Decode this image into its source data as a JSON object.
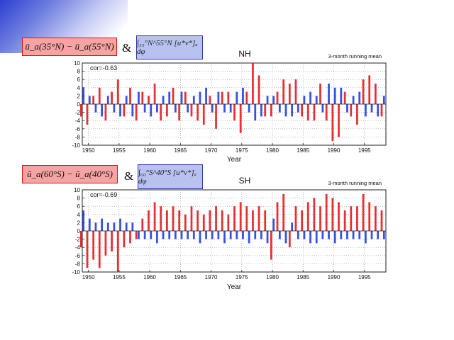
{
  "header": {
    "nh_eq_left": "ū_a(35°N) − ū_a(55°N)",
    "nh_eq_right": "∫₃₅°N^55°N [u*v*]ₐ dφ",
    "sh_eq_left": "ū_a(60°S) − ū_a(40°S)",
    "sh_eq_right": "∫₆₀°S^40°S [u*v*]ₐ dφ",
    "amp": "&"
  },
  "chart_data": [
    {
      "type": "area",
      "panel": "NH",
      "title": "NH",
      "subtitle": "3-month running mean",
      "annotation": "cor=-0.63",
      "xlabel": "Year",
      "ylabel": "",
      "xlim": [
        1949,
        1998.5
      ],
      "ylim": [
        -10,
        10
      ],
      "xticks": [
        1950,
        1955,
        1960,
        1965,
        1970,
        1975,
        1980,
        1985,
        1990,
        1995
      ],
      "yticks": [
        -10,
        -8,
        -6,
        -4,
        -2,
        0,
        2,
        4,
        6,
        8,
        10
      ],
      "grid": true,
      "series": [
        {
          "color": "#e31a1c",
          "x": [
            1949,
            1950,
            1951,
            1952,
            1953,
            1954,
            1955,
            1956,
            1957,
            1958,
            1959,
            1960,
            1961,
            1962,
            1963,
            1964,
            1965,
            1966,
            1967,
            1968,
            1969,
            1970,
            1971,
            1972,
            1973,
            1974,
            1975,
            1976,
            1977,
            1978,
            1979,
            1980,
            1981,
            1982,
            1983,
            1984,
            1985,
            1986,
            1987,
            1988,
            1989,
            1990,
            1991,
            1992,
            1993,
            1994,
            1995,
            1996,
            1997,
            1998
          ],
          "values": [
            -3,
            -5,
            2,
            4,
            -4,
            3,
            6,
            -3,
            4,
            -4,
            3,
            2,
            5,
            -4,
            -3,
            4,
            -4,
            3,
            -3,
            -4,
            -5,
            2,
            -6,
            3,
            3,
            -4,
            -7,
            3,
            10,
            7,
            -3,
            -3,
            3,
            6,
            5,
            6,
            -3,
            -4,
            -4,
            5,
            -4,
            -9,
            -8,
            3,
            -3,
            -5,
            6,
            7,
            5,
            -3
          ]
        },
        {
          "color": "#1f3ee0",
          "x": [
            1949,
            1950,
            1951,
            1952,
            1953,
            1954,
            1955,
            1956,
            1957,
            1958,
            1959,
            1960,
            1961,
            1962,
            1963,
            1964,
            1965,
            1966,
            1967,
            1968,
            1969,
            1970,
            1971,
            1972,
            1973,
            1974,
            1975,
            1976,
            1977,
            1978,
            1979,
            1980,
            1981,
            1982,
            1983,
            1984,
            1985,
            1986,
            1987,
            1988,
            1989,
            1990,
            1991,
            1992,
            1993,
            1994,
            1995,
            1996,
            1997,
            1998
          ],
          "values": [
            4,
            2,
            -2,
            -3,
            2,
            -2,
            -3,
            2,
            -3,
            3,
            -2,
            -3,
            -2,
            2,
            3,
            -2,
            3,
            -2,
            2,
            3,
            4,
            -2,
            3,
            -2,
            -2,
            3,
            4,
            -2,
            -4,
            -3,
            2,
            2,
            -2,
            -3,
            -3,
            -2,
            2,
            3,
            2,
            -2,
            5,
            4,
            4,
            -2,
            2,
            3,
            -3,
            -2,
            -3,
            2
          ]
        }
      ]
    },
    {
      "type": "area",
      "panel": "SH",
      "title": "SH",
      "subtitle": "3-month running mean",
      "annotation": "cor=-0.69",
      "xlabel": "Year",
      "ylabel": "",
      "xlim": [
        1949,
        1998.5
      ],
      "ylim": [
        -10,
        10
      ],
      "xticks": [
        1950,
        1955,
        1960,
        1965,
        1970,
        1975,
        1980,
        1985,
        1990,
        1995
      ],
      "yticks": [
        -10,
        -8,
        -6,
        -4,
        -2,
        0,
        2,
        4,
        6,
        8,
        10
      ],
      "grid": true,
      "series": [
        {
          "color": "#e31a1c",
          "x": [
            1949,
            1950,
            1951,
            1952,
            1953,
            1954,
            1955,
            1956,
            1957,
            1958,
            1959,
            1960,
            1961,
            1962,
            1963,
            1964,
            1965,
            1966,
            1967,
            1968,
            1969,
            1970,
            1971,
            1972,
            1973,
            1974,
            1975,
            1976,
            1977,
            1978,
            1979,
            1980,
            1981,
            1982,
            1983,
            1984,
            1985,
            1986,
            1987,
            1988,
            1989,
            1990,
            1991,
            1992,
            1993,
            1994,
            1995,
            1996,
            1997,
            1998
          ],
          "values": [
            -4,
            -9,
            -7,
            -9,
            -6,
            -5,
            -10,
            -4,
            -3,
            -2,
            3,
            5,
            7,
            6,
            5,
            6,
            5,
            4,
            6,
            5,
            4,
            5,
            6,
            5,
            4,
            6,
            7,
            6,
            5,
            6,
            5,
            -7,
            7,
            9,
            -4,
            6,
            5,
            7,
            8,
            6,
            9,
            8,
            7,
            5,
            6,
            6,
            9,
            7,
            6,
            5
          ]
        },
        {
          "color": "#1f3ee0",
          "x": [
            1949,
            1950,
            1951,
            1952,
            1953,
            1954,
            1955,
            1956,
            1957,
            1958,
            1959,
            1960,
            1961,
            1962,
            1963,
            1964,
            1965,
            1966,
            1967,
            1968,
            1969,
            1970,
            1971,
            1972,
            1973,
            1974,
            1975,
            1976,
            1977,
            1978,
            1979,
            1980,
            1981,
            1982,
            1983,
            1984,
            1985,
            1986,
            1987,
            1988,
            1989,
            1990,
            1991,
            1992,
            1993,
            1994,
            1995,
            1996,
            1997,
            1998
          ],
          "values": [
            5,
            3,
            2,
            3,
            2,
            2,
            3,
            2,
            2,
            -2,
            -2,
            -2,
            -3,
            -2,
            -2,
            -2,
            -2,
            -2,
            -2,
            -3,
            -2,
            -2,
            -2,
            -3,
            -2,
            -2,
            -2,
            -3,
            -2,
            -2,
            -3,
            3,
            -2,
            -3,
            2,
            -2,
            -2,
            -3,
            -3,
            -2,
            -2,
            -3,
            -2,
            -2,
            -2,
            -2,
            -3,
            -2,
            -2,
            -2
          ]
        }
      ]
    }
  ]
}
